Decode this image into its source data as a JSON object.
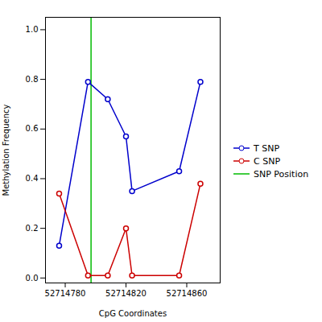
{
  "chart_data": {
    "type": "line",
    "x": [
      52714776,
      52714795,
      52714808,
      52714820,
      52714824,
      52714855,
      52714869
    ],
    "series": [
      {
        "name": "T SNP",
        "color": "#0000cc",
        "values": [
          0.13,
          0.79,
          0.72,
          0.57,
          0.35,
          0.43,
          0.79
        ]
      },
      {
        "name": "C SNP",
        "color": "#cc0000",
        "values": [
          0.34,
          0.01,
          0.01,
          0.2,
          0.01,
          0.01,
          0.38
        ]
      }
    ],
    "vline": {
      "name": "SNP Position",
      "value": 52714797,
      "color": "#00bb00"
    },
    "xlabel": "CpG Coordinates",
    "ylabel": "Methylation Frequency",
    "xlim": [
      52714767,
      52714882
    ],
    "ylim": [
      -0.02,
      1.05
    ],
    "xticks": [
      52714780,
      52714820,
      52714860
    ],
    "yticks": [
      {
        "value": 0.0,
        "label": "0.0"
      },
      0.2,
      0.4,
      0.6,
      0.8,
      {
        "value": 1.0,
        "label": "1.0"
      }
    ],
    "marker": "circle",
    "grid": false,
    "legend": "right"
  }
}
